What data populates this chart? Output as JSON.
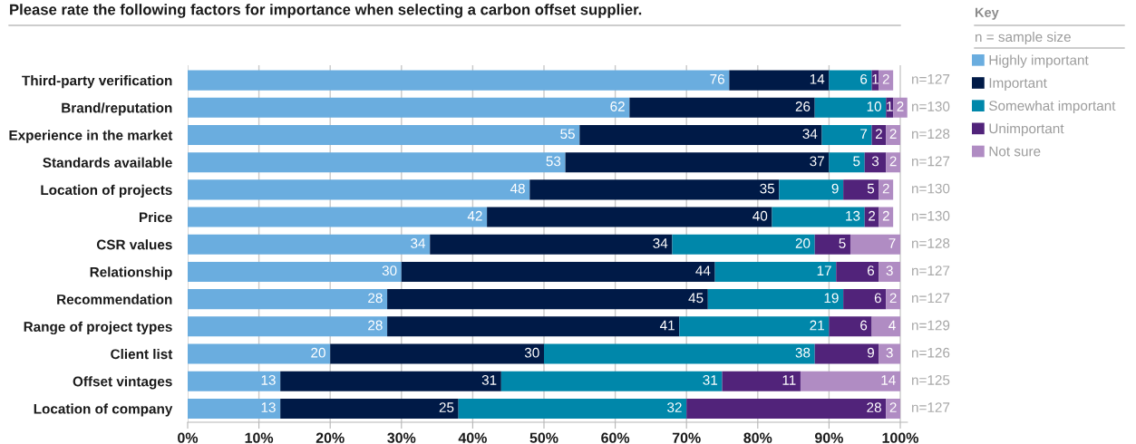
{
  "chart_data": {
    "type": "bar",
    "orientation": "horizontal",
    "stacked": true,
    "title": "Please rate the following factors for importance when selecting a carbon offset supplier.",
    "categories": [
      "Third-party verification",
      "Brand/reputation",
      "Experience in the market",
      "Standards available",
      "Location of projects",
      "Price",
      "CSR values",
      "Relationship",
      "Recommendation",
      "Range of project types",
      "Client list",
      "Offset vintages",
      "Location of company"
    ],
    "series": [
      {
        "name": "Highly important",
        "color": "#6aaddf",
        "values": [
          76,
          62,
          55,
          53,
          48,
          42,
          34,
          30,
          28,
          28,
          20,
          13,
          13
        ]
      },
      {
        "name": "Important",
        "color": "#001a47",
        "values": [
          14,
          26,
          34,
          37,
          35,
          40,
          34,
          44,
          45,
          41,
          30,
          31,
          25
        ]
      },
      {
        "name": "Somewhat important",
        "color": "#0087aa",
        "values": [
          6,
          10,
          7,
          5,
          9,
          13,
          20,
          17,
          19,
          21,
          38,
          31,
          32
        ]
      },
      {
        "name": "Unimportant",
        "color": "#51237a",
        "values": [
          1,
          1,
          2,
          3,
          5,
          2,
          5,
          6,
          6,
          6,
          9,
          11,
          28
        ]
      },
      {
        "name": "Not sure",
        "color": "#b08cc3",
        "values": [
          2,
          2,
          2,
          2,
          2,
          2,
          7,
          3,
          2,
          4,
          3,
          14,
          2
        ]
      }
    ],
    "xlim": [
      0,
      101
    ],
    "xticks": [
      {
        "value": 0,
        "label": "0%"
      },
      {
        "value": 10,
        "label": "10%"
      },
      {
        "value": 20,
        "label": "20%"
      },
      {
        "value": 30,
        "label": "30%"
      },
      {
        "value": 40,
        "label": "40%"
      },
      {
        "value": 50,
        "label": "50%"
      },
      {
        "value": 60,
        "label": "60%"
      },
      {
        "value": 70,
        "label": "70%"
      },
      {
        "value": 80,
        "label": "80%"
      },
      {
        "value": 90,
        "label": "90%"
      },
      {
        "value": 100,
        "label": "100%"
      }
    ],
    "grid": "x",
    "data_labels": true,
    "legend": "top right",
    "legend_title": "Key",
    "annotations": [
      "n = sample size",
      "n=127",
      "n=130",
      "n=128",
      "n=127",
      "n=130",
      "n=130",
      "n=128",
      "n=127",
      "n=127",
      "n=129",
      "n=126",
      "n=125",
      "n=127"
    ]
  }
}
